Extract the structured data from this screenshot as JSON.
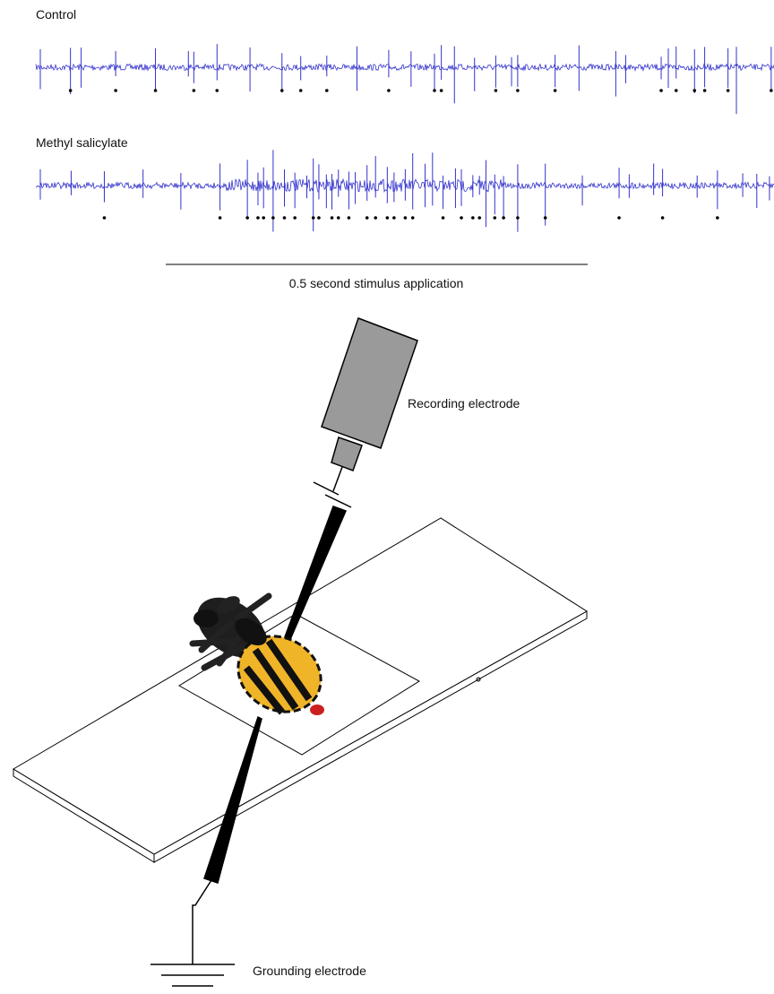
{
  "traces": [
    {
      "label": "Control"
    },
    {
      "label": "Methyl salicylate"
    }
  ],
  "stimulus_bar": {
    "label": "0.5 second stimulus application"
  },
  "labels": {
    "recording_electrode": "Recording electrode",
    "grounding_electrode": "Grounding electrode"
  }
}
